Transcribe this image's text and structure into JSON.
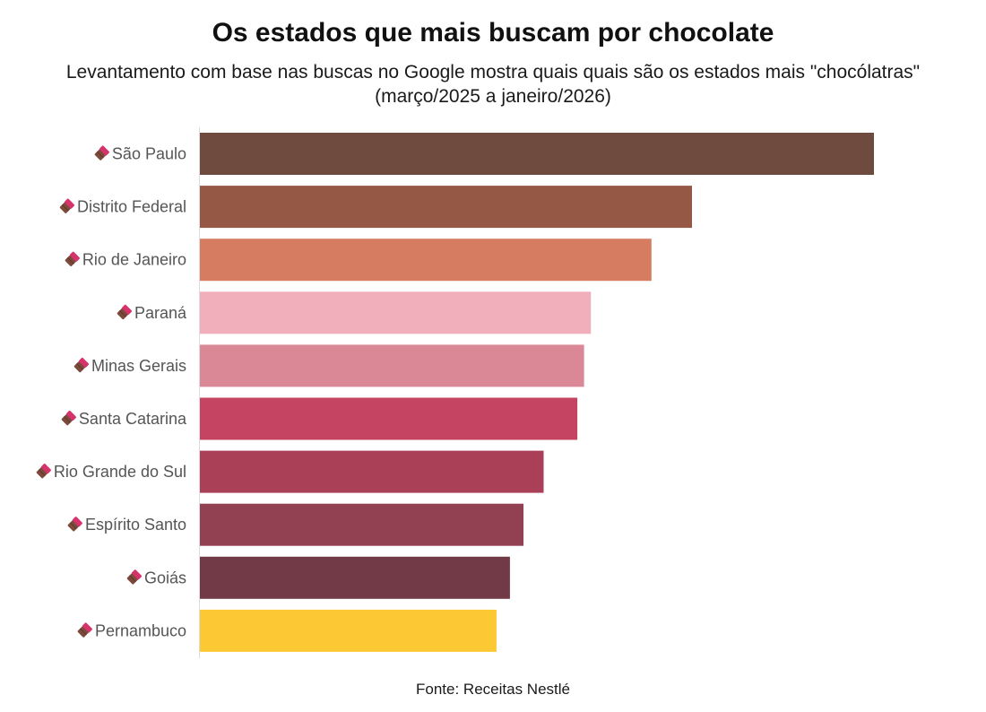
{
  "chart_data": {
    "type": "bar",
    "orientation": "horizontal",
    "title": "Os estados que mais buscam por chocolate",
    "subtitle": "Levantamento com base nas buscas no Google mostra quais quais são os estados mais \"chocólatras\" (março/2025 a janeiro/2026)",
    "categories": [
      "São Paulo",
      "Distrito Federal",
      "Rio de Janeiro",
      "Paraná",
      "Minas Gerais",
      "Santa Catarina",
      "Rio Grande do Sul",
      "Espírito Santo",
      "Goiás",
      "Pernambuco"
    ],
    "values": [
      100,
      73,
      67,
      58,
      57,
      56,
      51,
      48,
      46,
      44
    ],
    "colors": [
      "#6f4a3f",
      "#955845",
      "#d67c61",
      "#f1aebb",
      "#db8896",
      "#c54461",
      "#aa4057",
      "#924152",
      "#713a46",
      "#fcc935"
    ],
    "label_icon": "chocolate-bar-icon",
    "xlim": [
      0,
      100
    ],
    "xlabel": "",
    "ylabel": "",
    "grid": false,
    "legend": "none",
    "source": "Fonte: Receitas Nestlé"
  }
}
